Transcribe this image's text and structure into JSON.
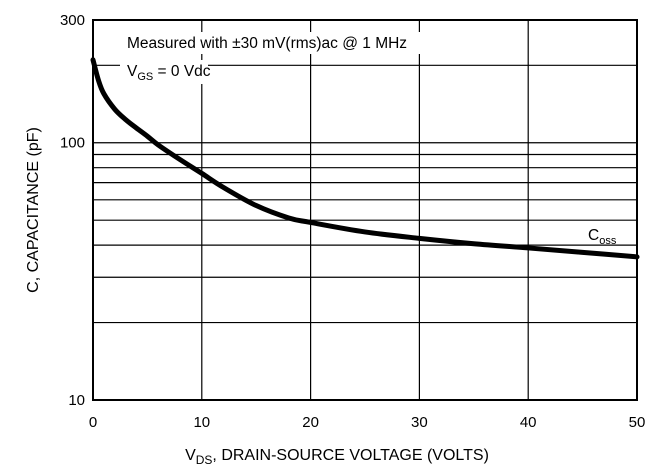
{
  "chart_data": {
    "type": "line",
    "title": "",
    "xlabel": {
      "prefix": "V",
      "sub": "DS",
      "suffix": ", DRAIN-SOURCE VOLTAGE (VOLTS)"
    },
    "ylabel": "C, CAPACITANCE (pF)",
    "xlim": [
      0,
      50
    ],
    "ylim": [
      10,
      300
    ],
    "yscale": "log",
    "grid": true,
    "x_ticks": [
      0,
      10,
      20,
      30,
      40,
      50
    ],
    "x_tick_labels": [
      "0",
      "10",
      "20",
      "30",
      "40",
      "50"
    ],
    "y_tick_values": [
      10,
      100,
      300
    ],
    "y_tick_labels": [
      "10",
      "100",
      "300"
    ],
    "annotations": {
      "condition": "Measured with ±30 mV(rms)ac @ 1 MHz",
      "vgs_prefix": "V",
      "vgs_sub": "GS",
      "vgs_suffix": " = 0 Vdc"
    },
    "series": [
      {
        "name": "C",
        "name_sub": "oss",
        "color": "#000000",
        "x": [
          0,
          0.5,
          1,
          2,
          3,
          4,
          5,
          6,
          8,
          10,
          12,
          15,
          18,
          20,
          25,
          30,
          35,
          40,
          45,
          50
        ],
        "y": [
          210,
          175,
          155,
          135,
          123,
          114,
          106,
          98,
          86,
          76,
          67,
          57,
          51,
          49,
          45,
          42.5,
          40.5,
          39,
          37.5,
          36
        ]
      }
    ]
  }
}
